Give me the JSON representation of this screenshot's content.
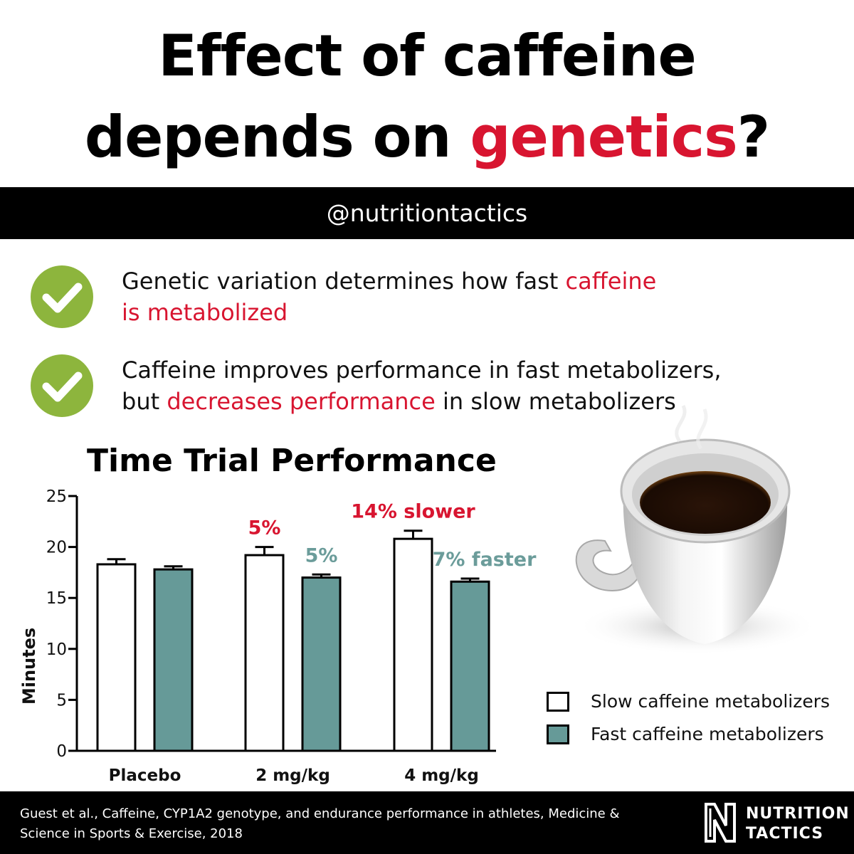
{
  "title": {
    "line1": "Effect of caffeine",
    "line2_pre": "depends on ",
    "line2_red": "genetics",
    "line2_post": "?"
  },
  "handle": "@nutritiontactics",
  "points": [
    {
      "line1_pre": "Genetic variation determines how fast ",
      "line1_red": "caffeine",
      "line2_red": "is metabolized",
      "icon": "check-circle-icon"
    },
    {
      "line1": "Caffeine improves performance in fast metabolizers,",
      "line2_pre": "but ",
      "line2_red": "decreases performance",
      "line2_post": " in slow metabolizers",
      "icon": "check-circle-icon"
    }
  ],
  "colors": {
    "red": "#d81530",
    "teal": "#669a98",
    "teal_label": "#6b9c9a",
    "check_green": "#8db53d",
    "black": "#000000"
  },
  "chart_data": {
    "type": "bar",
    "title": "Time Trial Performance",
    "ylabel": "Minutes",
    "xlabel": "",
    "ylim": [
      0,
      25
    ],
    "yticks": [
      0,
      5,
      10,
      15,
      20,
      25
    ],
    "categories": [
      "Placebo",
      "2 mg/kg",
      "4 mg/kg"
    ],
    "series": [
      {
        "name": "Slow caffeine metabolizers",
        "fill": "#ffffff",
        "values": [
          18.3,
          19.2,
          20.8
        ],
        "errors": [
          0.5,
          0.8,
          0.8
        ],
        "labels": [
          "",
          "5%",
          "14% slower"
        ],
        "label_color": "#d81530"
      },
      {
        "name": "Fast caffeine metabolizers",
        "fill": "#669a98",
        "values": [
          17.8,
          17.0,
          16.6
        ],
        "errors": [
          0.3,
          0.3,
          0.3
        ],
        "labels": [
          "",
          "5%",
          "7% faster"
        ],
        "label_color": "#6b9c9a"
      }
    ],
    "legend_position": "bottom-right"
  },
  "footer": {
    "citation_line1": "Guest et al., Caffeine, CYP1A2 genotype, and endurance performance in athletes, Medicine &",
    "citation_line2": "Science in Sports & Exercise, 2018",
    "brand_line1": "NUTRITION",
    "brand_line2": "TACTICS",
    "logo_icon": "nutrition-tactics-logo-icon"
  },
  "illustration": "coffee-cup-icon"
}
